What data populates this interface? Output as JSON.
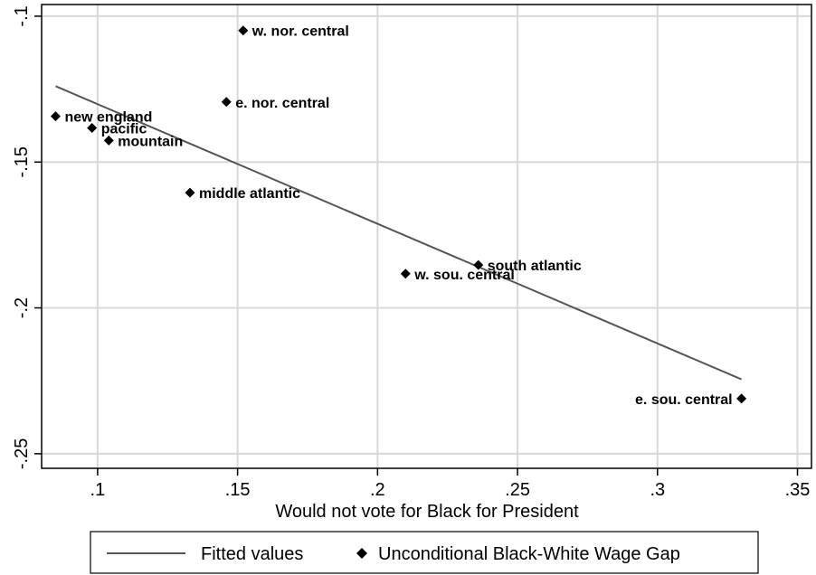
{
  "chart_data": {
    "type": "scatter",
    "xlabel": "Would not vote for Black for President",
    "ylabel": "",
    "xlim": [
      0.08,
      0.355
    ],
    "ylim": [
      -0.255,
      -0.096
    ],
    "x_ticks": [
      0.1,
      0.15,
      0.2,
      0.25,
      0.3,
      0.35
    ],
    "x_tick_labels": [
      ".1",
      ".15",
      ".2",
      ".25",
      ".3",
      ".35"
    ],
    "y_ticks": [
      -0.1,
      -0.15,
      -0.2,
      -0.25
    ],
    "y_tick_labels": [
      "-.1",
      "-.15",
      "-.2",
      "-.25"
    ],
    "grid": true,
    "legend_position": "bottom",
    "series": [
      {
        "name": "Fitted values",
        "kind": "line",
        "color": "#555555",
        "points": [
          {
            "x": 0.085,
            "y": -0.124
          },
          {
            "x": 0.33,
            "y": -0.2245
          }
        ]
      },
      {
        "name": "Unconditional Black-White Wage Gap",
        "kind": "scatter",
        "marker": "diamond",
        "color": "#000000",
        "points": [
          {
            "label": "new england",
            "x": 0.085,
            "y": -0.1343
          },
          {
            "label": "pacific",
            "x": 0.098,
            "y": -0.1383
          },
          {
            "label": "mountain",
            "x": 0.104,
            "y": -0.1426
          },
          {
            "label": "middle atlantic",
            "x": 0.133,
            "y": -0.1605
          },
          {
            "label": "e. nor. central",
            "x": 0.146,
            "y": -0.1294
          },
          {
            "label": "w. nor. central",
            "x": 0.152,
            "y": -0.1049
          },
          {
            "label": "w. sou. central",
            "x": 0.21,
            "y": -0.1883
          },
          {
            "label": "south atlantic",
            "x": 0.236,
            "y": -0.1853
          },
          {
            "label": "e. sou. central",
            "x": 0.33,
            "y": -0.2311
          }
        ]
      }
    ]
  }
}
